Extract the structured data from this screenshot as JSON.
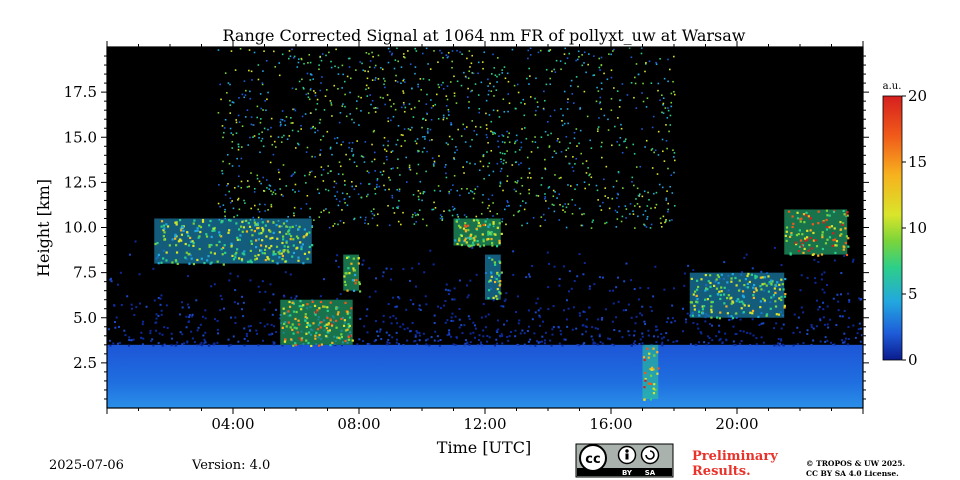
{
  "chart_data": {
    "type": "heatmap",
    "title": "Range Corrected Signal at 1064 nm FR of pollyxt_uw at Warsaw",
    "xlabel": "Time [UTC]",
    "ylabel": "Height [km]",
    "xlim": [
      0,
      24
    ],
    "ylim": [
      0,
      20
    ],
    "x_ticks": [
      {
        "value": 4,
        "label": "04:00"
      },
      {
        "value": 8,
        "label": "08:00"
      },
      {
        "value": 12,
        "label": "12:00"
      },
      {
        "value": 16,
        "label": "16:00"
      },
      {
        "value": 20,
        "label": "20:00"
      }
    ],
    "y_ticks": [
      {
        "value": 2.5,
        "label": "2.5"
      },
      {
        "value": 5.0,
        "label": "5.0"
      },
      {
        "value": 7.5,
        "label": "7.5"
      },
      {
        "value": 10.0,
        "label": "10.0"
      },
      {
        "value": 12.5,
        "label": "12.5"
      },
      {
        "value": 15.0,
        "label": "15.0"
      },
      {
        "value": 17.5,
        "label": "17.5"
      }
    ],
    "colorbar": {
      "unit": "a.u.",
      "range": [
        0,
        20
      ],
      "ticks": [
        {
          "value": 0,
          "label": "0"
        },
        {
          "value": 5,
          "label": "5"
        },
        {
          "value": 10,
          "label": "10"
        },
        {
          "value": 15,
          "label": "15"
        },
        {
          "value": 20,
          "label": "20"
        }
      ],
      "colormap": [
        "#0b1b8c",
        "#1e5bd8",
        "#22a7e0",
        "#2ccf8a",
        "#7ad43a",
        "#d9e52a",
        "#f7b21e",
        "#f05a1a",
        "#d61f1f"
      ]
    },
    "features": {
      "boundary_layer": {
        "top_km": 3.5,
        "value": 4
      },
      "cloud_layers": [
        {
          "start_h": 1.5,
          "end_h": 6.5,
          "base_km": 8.0,
          "top_km": 10.5,
          "value": 12
        },
        {
          "start_h": 5.5,
          "end_h": 7.8,
          "base_km": 3.5,
          "top_km": 6.0,
          "value": 16
        },
        {
          "start_h": 7.5,
          "end_h": 8.0,
          "base_km": 6.5,
          "top_km": 8.5,
          "value": 14
        },
        {
          "start_h": 11.0,
          "end_h": 12.5,
          "base_km": 9.0,
          "top_km": 10.5,
          "value": 14
        },
        {
          "start_h": 12.0,
          "end_h": 12.5,
          "base_km": 6.0,
          "top_km": 8.5,
          "value": 13
        },
        {
          "start_h": 17.0,
          "end_h": 17.5,
          "base_km": 0.5,
          "top_km": 3.5,
          "value": 18
        },
        {
          "start_h": 18.5,
          "end_h": 21.5,
          "base_km": 5.0,
          "top_km": 7.5,
          "value": 12
        },
        {
          "start_h": 21.5,
          "end_h": 23.5,
          "base_km": 8.5,
          "top_km": 11.0,
          "value": 17
        }
      ],
      "noise_region": {
        "start_h": 3.5,
        "end_h": 18.0,
        "base_km": 10.0,
        "top_km": 20.0,
        "value": 6
      }
    }
  },
  "footer": {
    "date": "2025-07-06",
    "version": "Version: 4.0",
    "license_badge": {
      "icon_name": "cc-by-sa-icon",
      "left_label": "BY",
      "right_label": "SA"
    },
    "preliminary_line1": "Preliminary",
    "preliminary_line2": "Results.",
    "copyright_line1": "© TROPOS & UW 2025.",
    "copyright_line2": "CC BY SA 4.0 License."
  }
}
